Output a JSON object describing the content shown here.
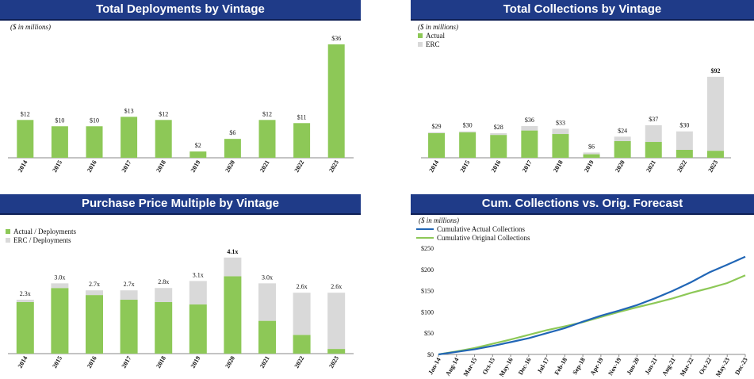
{
  "colors": {
    "header_bg": "#1f3b88",
    "actual": "#8dc857",
    "erc": "#d9d9d9",
    "cum_actual": "#2166b6",
    "cum_forecast": "#8dc857"
  },
  "chart_data": [
    {
      "id": "deployments",
      "type": "bar",
      "title": "Total Deployments by Vintage",
      "note": "($ in millions)",
      "categories": [
        "2014",
        "2015",
        "2016",
        "2017",
        "2018",
        "2019",
        "2020",
        "2021",
        "2022",
        "2023"
      ],
      "values": [
        12,
        10,
        10,
        13,
        12,
        2,
        6,
        12,
        11,
        36
      ],
      "labels": [
        "$12",
        "$10",
        "$10",
        "$13",
        "$12",
        "$2",
        "$6",
        "$12",
        "$11",
        "$36"
      ],
      "ylim": [
        0,
        40
      ]
    },
    {
      "id": "collections",
      "type": "bar",
      "stacked": true,
      "title": "Total Collections by Vintage",
      "note": "($ in millions)",
      "legend": [
        "Actual",
        "ERC"
      ],
      "categories": [
        "2014",
        "2015",
        "2016",
        "2017",
        "2018",
        "2019",
        "2020",
        "2021",
        "2022",
        "2023"
      ],
      "series": [
        {
          "name": "Actual",
          "values": [
            28,
            29,
            26,
            31,
            27,
            4,
            19,
            18,
            9,
            8
          ]
        },
        {
          "name": "ERC",
          "values": [
            1,
            1,
            2,
            5,
            6,
            2,
            5,
            19,
            21,
            84
          ]
        }
      ],
      "labels": [
        "$29",
        "$30",
        "$28",
        "$36",
        "$33",
        "$6",
        "$24",
        "$37",
        "$30",
        "$92"
      ],
      "ylim": [
        0,
        100
      ]
    },
    {
      "id": "multiple",
      "type": "bar",
      "stacked": true,
      "title": "Purchase Price Multiple by Vintage",
      "legend": [
        "Actual / Deployments",
        "ERC / Deployments"
      ],
      "categories": [
        "2014",
        "2015",
        "2016",
        "2017",
        "2018",
        "2019",
        "2020",
        "2021",
        "2022",
        "2023"
      ],
      "series": [
        {
          "name": "Actual / Deployments",
          "values": [
            2.2,
            2.8,
            2.5,
            2.3,
            2.2,
            2.1,
            3.3,
            1.4,
            0.8,
            0.2
          ]
        },
        {
          "name": "ERC / Deployments",
          "values": [
            0.1,
            0.2,
            0.2,
            0.4,
            0.6,
            1.0,
            0.8,
            1.6,
            1.8,
            2.4
          ]
        }
      ],
      "labels": [
        "2.3x",
        "3.0x",
        "2.7x",
        "2.7x",
        "2.8x",
        "3.1x",
        "4.1x",
        "3.0x",
        "2.6x",
        "2.6x"
      ],
      "ylim": [
        0,
        4.5
      ]
    },
    {
      "id": "cumulative",
      "type": "line",
      "title": "Cum. Collections vs. Orig. Forecast",
      "note": "($ in millions)",
      "legend": [
        "Cumulative Actual Collections",
        "Cumulative Original Collections"
      ],
      "x_ticks": [
        "Jan-14",
        "Aug-14",
        "Mar-15",
        "Oct-15",
        "May-16",
        "Dec-16",
        "Jul-17",
        "Feb-18",
        "Sep-18",
        "Apr-19",
        "Nov-19",
        "Jun-20",
        "Jan-21",
        "Aug-21",
        "Mar-22",
        "Oct-22",
        "May-23",
        "Dec-23"
      ],
      "y_ticks": [
        "$0",
        "$50",
        "$100",
        "$150",
        "$200",
        "$250"
      ],
      "ylim": [
        0,
        250
      ],
      "series": [
        {
          "name": "Cumulative Actual Collections",
          "values": [
            0,
            6,
            12,
            20,
            29,
            38,
            50,
            62,
            77,
            91,
            103,
            116,
            132,
            150,
            170,
            193,
            211,
            230
          ]
        },
        {
          "name": "Cumulative Original Collections",
          "values": [
            0,
            7,
            15,
            25,
            35,
            46,
            57,
            66,
            76,
            88,
            100,
            111,
            121,
            132,
            145,
            156,
            168,
            186
          ]
        }
      ]
    }
  ]
}
